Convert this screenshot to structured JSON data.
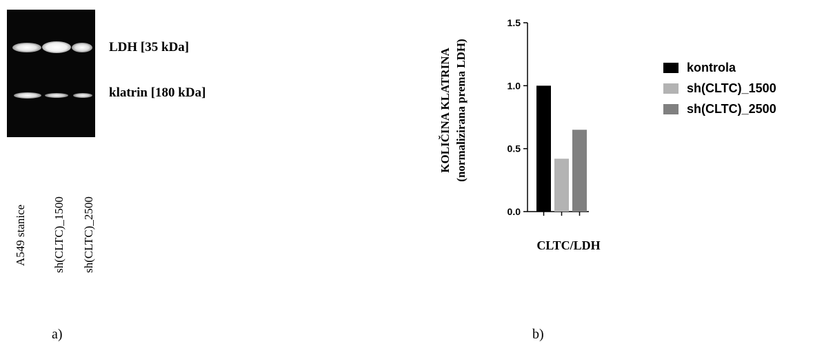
{
  "blot": {
    "bands": [
      {
        "name": "LDH [35 kDa]",
        "label": "LDH [35 kDa]"
      },
      {
        "name": "klatrin [180 kDa]",
        "label": "klatrin [180 kDa]"
      }
    ],
    "lanes": [
      "A549 stanice",
      "sh(CLTC)_1500",
      "sh(CLTC)_2500"
    ]
  },
  "panels": {
    "a": "a)",
    "b": "b)"
  },
  "chart_data": {
    "type": "bar",
    "categories": [
      "CLTC/LDH"
    ],
    "series": [
      {
        "name": "kontrola",
        "values": [
          1.0
        ],
        "color": "#000000"
      },
      {
        "name": "sh(CLTC)_1500",
        "values": [
          0.42
        ],
        "color": "#b3b3b3"
      },
      {
        "name": "sh(CLTC)_2500",
        "values": [
          0.65
        ],
        "color": "#808080"
      }
    ],
    "ylabel_line1": "KOLIČINA KLATRINA",
    "ylabel_line2": "(normalizirana prema LDH)",
    "xlabel": "CLTC/LDH",
    "ylim": [
      0,
      1.5
    ],
    "yticks": [
      "0.0",
      "0.5",
      "1.0",
      "1.5"
    ],
    "legend_position": "right"
  }
}
